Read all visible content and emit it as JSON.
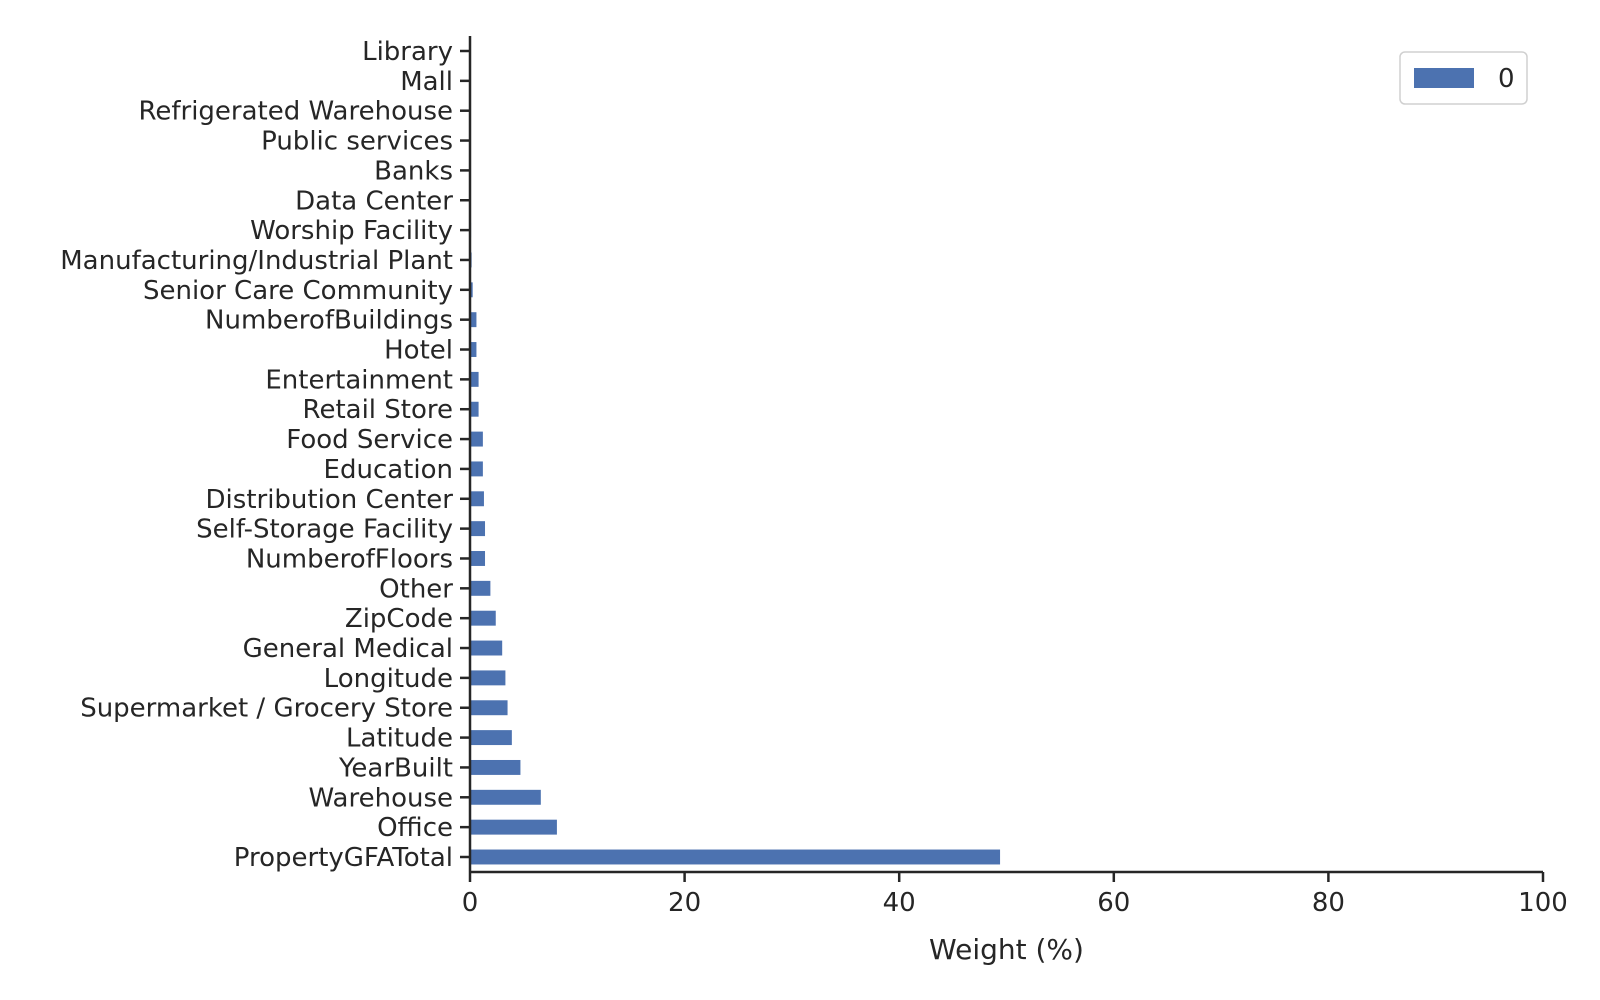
{
  "chart_data": {
    "type": "bar",
    "orientation": "horizontal",
    "categories": [
      "PropertyGFATotal",
      "Office",
      "Warehouse",
      "YearBuilt",
      "Latitude",
      "Supermarket / Grocery Store",
      "Longitude",
      "General Medical",
      "ZipCode",
      "Other",
      "NumberofFloors",
      "Self-Storage Facility",
      "Distribution Center",
      "Education",
      "Food Service",
      "Retail Store",
      "Entertainment",
      "Hotel",
      "NumberofBuildings",
      "Senior Care Community",
      "Manufacturing/Industrial Plant",
      "Worship Facility",
      "Data Center",
      "Banks",
      "Public services",
      "Refrigerated Warehouse",
      "Mall",
      "Library"
    ],
    "series": [
      {
        "name": "0",
        "values": [
          49.4,
          8.1,
          6.6,
          4.7,
          3.9,
          3.5,
          3.3,
          3.0,
          2.4,
          1.9,
          1.4,
          1.4,
          1.3,
          1.2,
          1.2,
          0.8,
          0.8,
          0.6,
          0.6,
          0.25,
          0.15,
          0.1,
          0.05,
          0.05,
          0.03,
          0.02,
          0.01,
          0.01
        ]
      }
    ],
    "xlabel": "Weight (%)",
    "ylabel": "",
    "xlim": [
      0,
      100
    ],
    "xticks": [
      "0",
      "20",
      "40",
      "60",
      "80",
      "100"
    ],
    "grid": false,
    "legend": {
      "position": "top-right"
    },
    "colors": {
      "bar": "#4c72b0",
      "axis": "#262626"
    }
  }
}
